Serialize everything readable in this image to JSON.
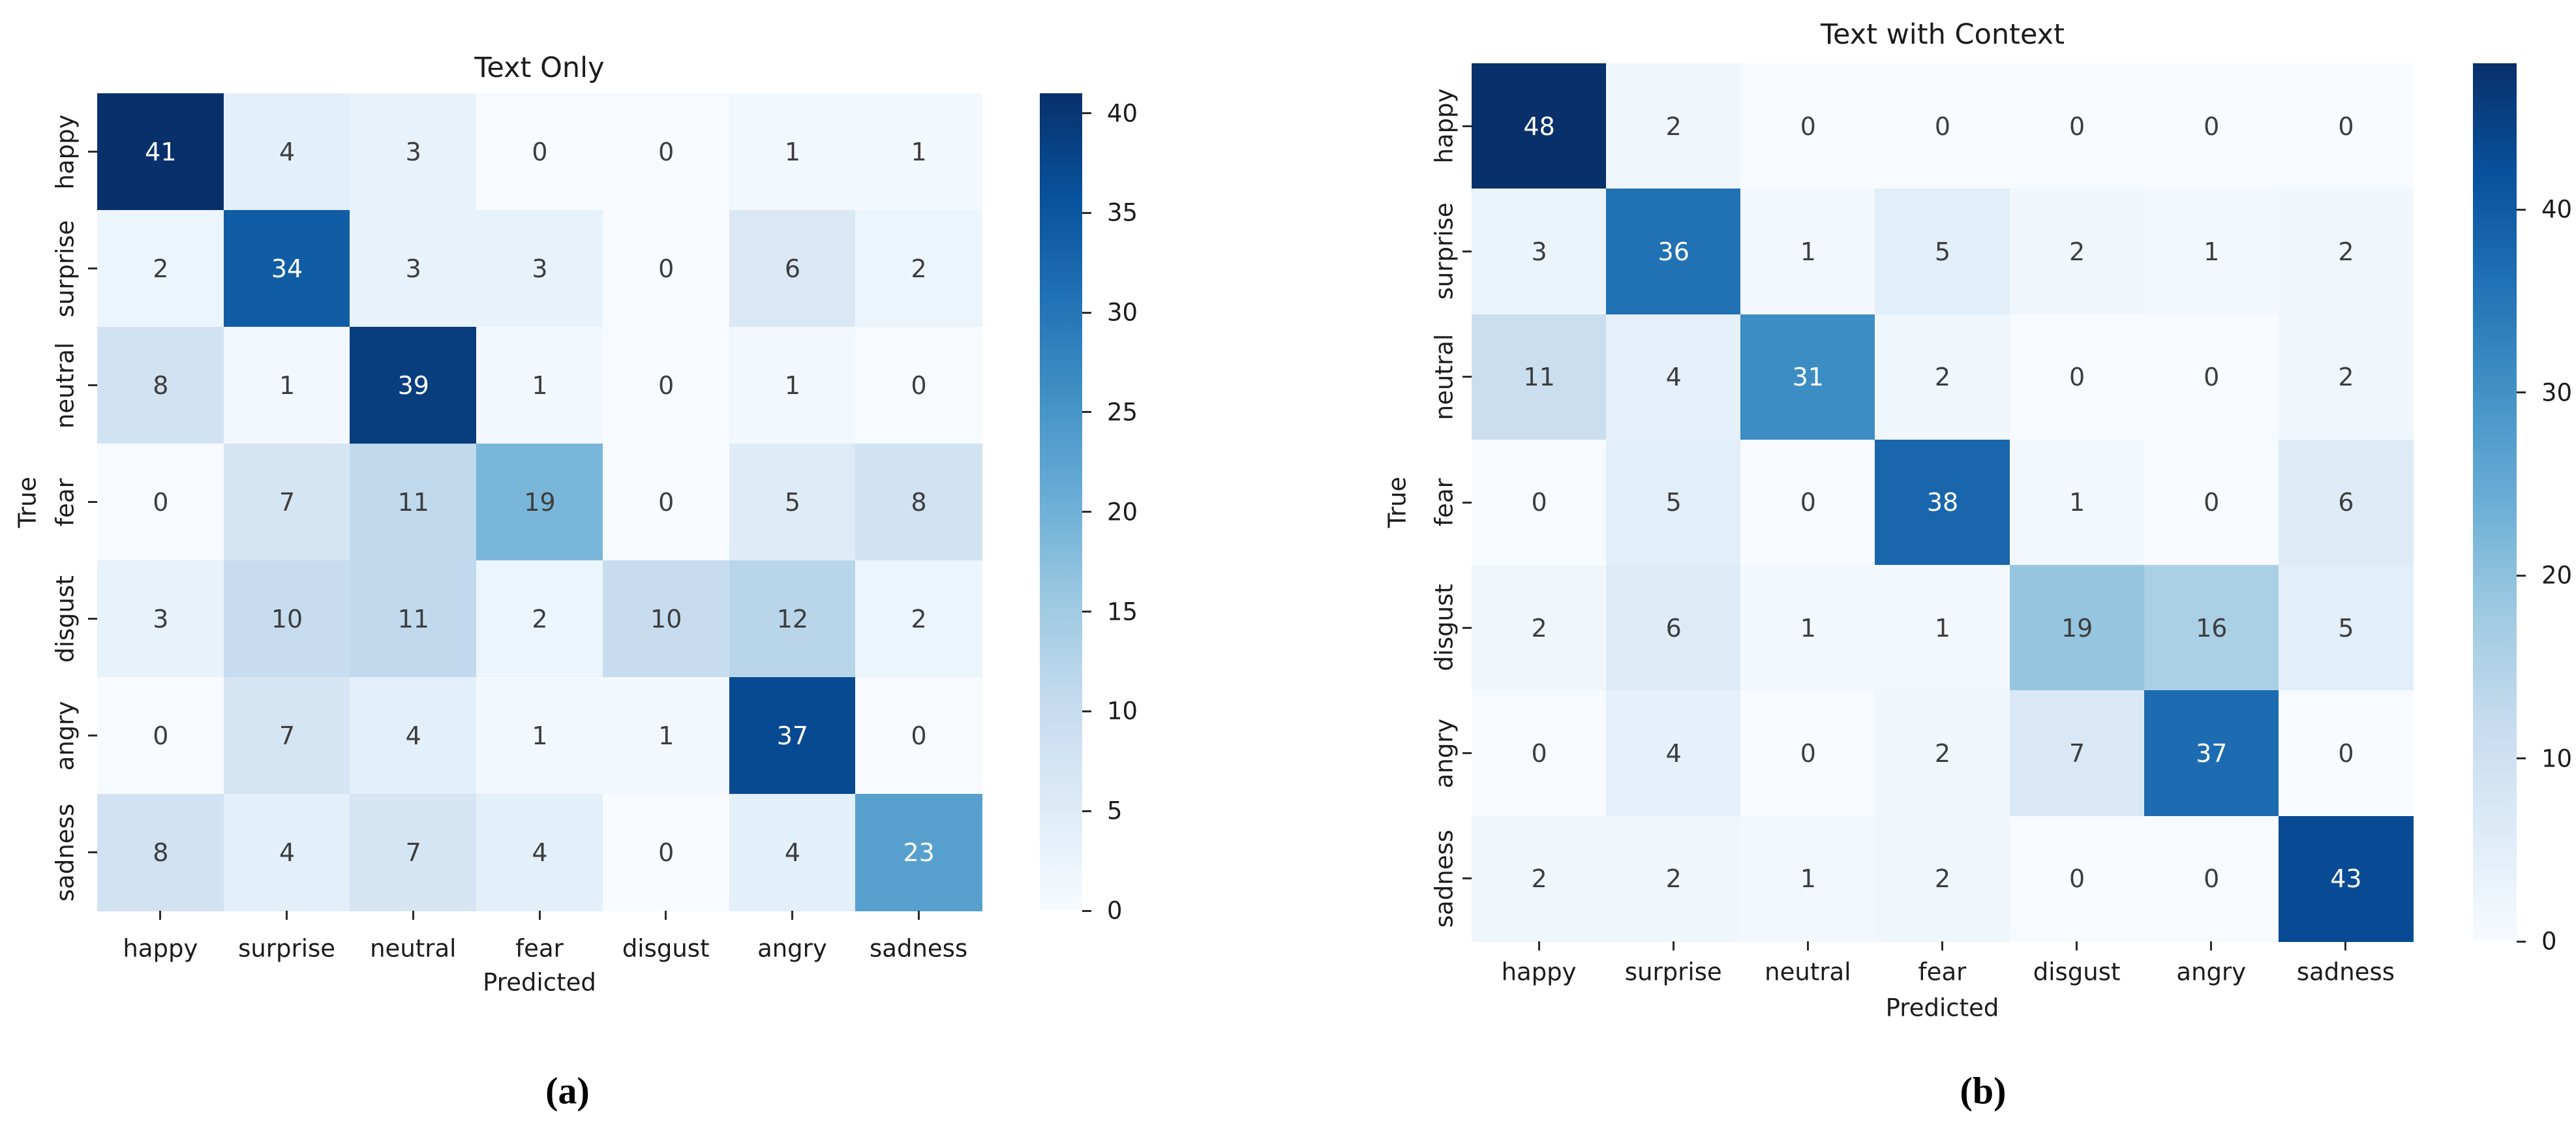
{
  "page": {
    "background": "#ffffff"
  },
  "colormap": {
    "name": "Blues",
    "stops": [
      "#f7fbff",
      "#deebf7",
      "#c6dbef",
      "#9ecae1",
      "#6baed6",
      "#4292c6",
      "#2171b5",
      "#08519c",
      "#08306b"
    ]
  },
  "chart_data": [
    {
      "type": "heatmap",
      "panel": "a",
      "title": "Text Only",
      "caption": "(a)",
      "xlabel": "Predicted",
      "ylabel": "True",
      "x_categories": [
        "happy",
        "surprise",
        "neutral",
        "fear",
        "disgust",
        "angry",
        "sadness"
      ],
      "y_categories": [
        "happy",
        "surprise",
        "neutral",
        "fear",
        "disgust",
        "angry",
        "sadness"
      ],
      "matrix": [
        [
          41,
          4,
          3,
          0,
          0,
          1,
          1
        ],
        [
          2,
          34,
          3,
          3,
          0,
          6,
          2
        ],
        [
          8,
          1,
          39,
          1,
          0,
          1,
          0
        ],
        [
          0,
          7,
          11,
          19,
          0,
          5,
          8
        ],
        [
          3,
          10,
          11,
          2,
          10,
          12,
          2
        ],
        [
          0,
          7,
          4,
          1,
          1,
          37,
          0
        ],
        [
          8,
          4,
          7,
          4,
          0,
          4,
          23
        ]
      ],
      "vmin": 0,
      "vmax": 41,
      "colorbar_ticks": [
        40,
        35,
        30,
        25,
        20,
        15,
        10,
        5,
        0
      ],
      "legend_position": "right",
      "grid": false
    },
    {
      "type": "heatmap",
      "panel": "b",
      "title": "Text with Context",
      "caption": "(b)",
      "xlabel": "Predicted",
      "ylabel": "True",
      "x_categories": [
        "happy",
        "surprise",
        "neutral",
        "fear",
        "disgust",
        "angry",
        "sadness"
      ],
      "y_categories": [
        "happy",
        "surprise",
        "neutral",
        "fear",
        "disgust",
        "angry",
        "sadness"
      ],
      "matrix": [
        [
          48,
          2,
          0,
          0,
          0,
          0,
          0
        ],
        [
          3,
          36,
          1,
          5,
          2,
          1,
          2
        ],
        [
          11,
          4,
          31,
          2,
          0,
          0,
          2
        ],
        [
          0,
          5,
          0,
          38,
          1,
          0,
          6
        ],
        [
          2,
          6,
          1,
          1,
          19,
          16,
          5
        ],
        [
          0,
          4,
          0,
          2,
          7,
          37,
          0
        ],
        [
          2,
          2,
          1,
          2,
          0,
          0,
          43
        ]
      ],
      "vmin": 0,
      "vmax": 48,
      "colorbar_ticks": [
        40,
        30,
        20,
        10,
        0
      ],
      "legend_position": "right",
      "grid": false
    }
  ]
}
